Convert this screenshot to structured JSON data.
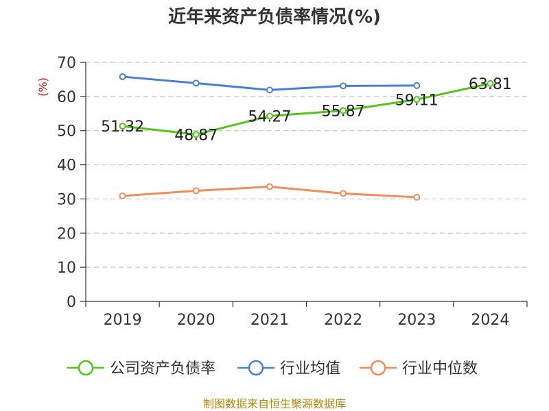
{
  "chart_data": {
    "type": "line",
    "title": "近年来资产负债率情况(%)",
    "ylabel": "(%)",
    "xlabel": "",
    "categories": [
      "2019",
      "2020",
      "2021",
      "2022",
      "2023",
      "2024"
    ],
    "ylim": [
      0,
      70
    ],
    "yticks": [
      0,
      10,
      20,
      30,
      40,
      50,
      60,
      70
    ],
    "grid": true,
    "legend_position": "bottom",
    "series": [
      {
        "name": "公司资产负债率",
        "color": "#52c41a",
        "values": [
          51.32,
          48.87,
          54.27,
          55.87,
          59.11,
          63.81
        ],
        "labels": [
          "51.32",
          "48.87",
          "54.27",
          "55.87",
          "59.11",
          "63.81"
        ]
      },
      {
        "name": "行业均值",
        "color": "#4a7fd6",
        "values": [
          65.8,
          63.9,
          61.9,
          63.1,
          63.2,
          null
        ]
      },
      {
        "name": "行业中位数",
        "color": "#f28c5b",
        "values": [
          30.9,
          32.4,
          33.6,
          31.6,
          30.5,
          null
        ]
      }
    ]
  },
  "source": "制图数据来自恒生聚源数据库"
}
